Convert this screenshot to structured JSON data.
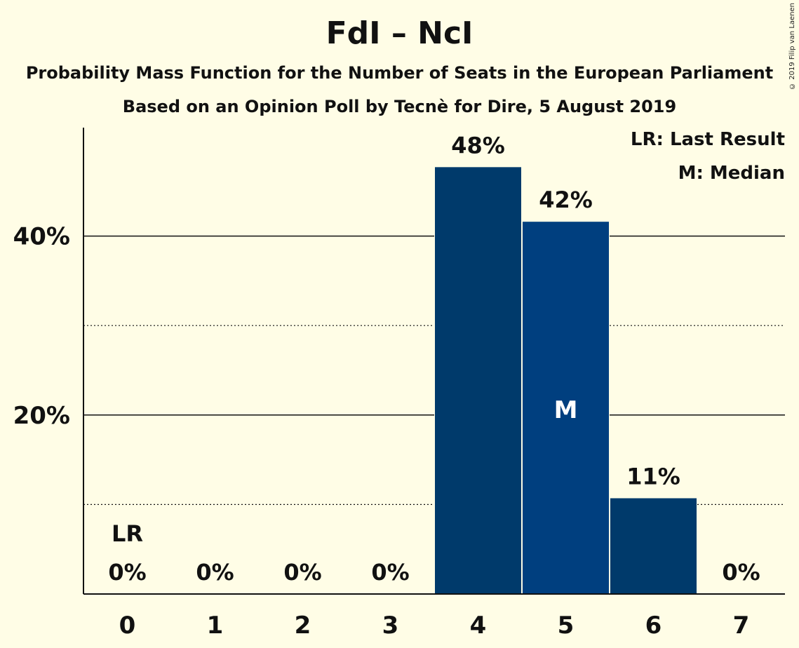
{
  "title": "FdI – NcI",
  "subtitle1": "Probability Mass Function for the Number of Seats in the European Parliament",
  "subtitle2": "Based on an Opinion Poll by Tecnè for Dire, 5 August 2019",
  "copyright": "© 2019 Filip van Laenen",
  "legend": {
    "lr": "LR: Last Result",
    "m": "M: Median"
  },
  "colors": {
    "bar": "#003A6B",
    "bar_median": "#003F7F",
    "background": "#FFFDE6"
  },
  "chart_data": {
    "type": "bar",
    "categories": [
      "0",
      "1",
      "2",
      "3",
      "4",
      "5",
      "6",
      "7"
    ],
    "values": [
      0,
      0,
      0,
      0,
      47.7,
      41.6,
      10.7,
      0
    ],
    "data_labels": [
      "0%",
      "0%",
      "0%",
      "0%",
      "48%",
      "42%",
      "11%",
      "0%"
    ],
    "y_ticks": [
      {
        "value": 20,
        "label": "20%"
      },
      {
        "value": 40,
        "label": "40%"
      }
    ],
    "minor_gridlines": [
      10,
      30
    ],
    "ylim": [
      0,
      52
    ],
    "last_result_index": 0,
    "last_result_label": "LR",
    "median_index": 5,
    "median_label": "M"
  }
}
